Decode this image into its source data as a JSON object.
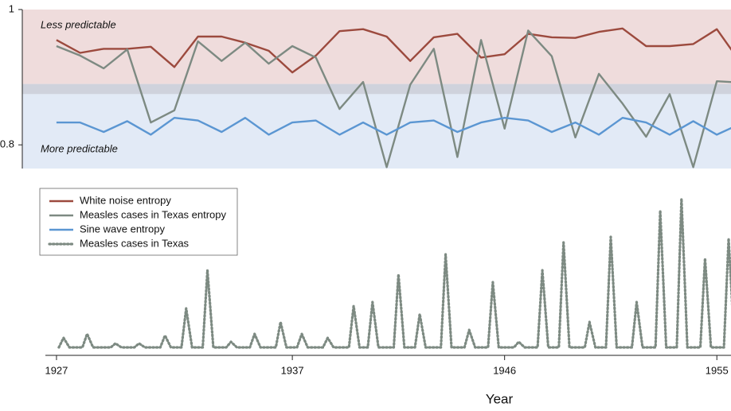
{
  "chart_data": [
    {
      "type": "line",
      "x": [
        1927,
        1928,
        1929,
        1930,
        1931,
        1932,
        1933,
        1934,
        1935,
        1936,
        1937,
        1938,
        1939,
        1940,
        1941,
        1942,
        1943,
        1944,
        1945,
        1946,
        1947,
        1948,
        1949,
        1950,
        1951,
        1952,
        1953,
        1954,
        1955,
        1956
      ],
      "series": [
        {
          "name": "White noise entropy",
          "color": "#9c4a3e",
          "values": [
            0.955,
            0.936,
            0.942,
            0.942,
            0.945,
            0.915,
            0.96,
            0.96,
            0.951,
            0.939,
            0.907,
            0.932,
            0.968,
            0.971,
            0.96,
            0.924,
            0.959,
            0.964,
            0.929,
            0.934,
            0.964,
            0.959,
            0.958,
            0.967,
            0.972,
            0.946,
            0.946,
            0.949,
            0.971,
            0.922
          ]
        },
        {
          "name": "Measles cases in Texas entropy",
          "color": "#7d8a82",
          "values": [
            0.946,
            0.932,
            0.913,
            0.941,
            0.833,
            0.851,
            0.953,
            0.924,
            0.951,
            0.92,
            0.946,
            0.929,
            0.853,
            0.893,
            0.767,
            0.889,
            0.942,
            0.782,
            0.955,
            0.824,
            0.969,
            0.931,
            0.811,
            0.905,
            0.861,
            0.812,
            0.875,
            0.767,
            0.894,
            0.892
          ]
        },
        {
          "name": "Sine wave entropy",
          "color": "#5b96d2",
          "values": [
            0.833,
            0.833,
            0.819,
            0.835,
            0.815,
            0.84,
            0.836,
            0.819,
            0.84,
            0.815,
            0.833,
            0.836,
            0.815,
            0.833,
            0.815,
            0.833,
            0.836,
            0.819,
            0.833,
            0.84,
            0.836,
            0.819,
            0.833,
            0.815,
            0.84,
            0.833,
            0.815,
            0.835,
            0.815,
            0.831
          ]
        }
      ],
      "bands": [
        {
          "range": [
            0.89,
            1
          ],
          "color": "#efdcdc"
        },
        {
          "range": [
            0.875,
            0.89
          ],
          "color": "#cfd2dc"
        },
        {
          "range": [
            0.765,
            0.875
          ],
          "color": "#e2eaf6"
        }
      ],
      "annotations": [
        "Less predictable",
        "More predictable"
      ],
      "xlim": [
        1925.55,
        1955.6
      ],
      "ylim": [
        0.765,
        1
      ],
      "yticks": [
        0.8,
        1
      ]
    },
    {
      "type": "line",
      "x": [
        1927.1,
        1927.3,
        1927.55,
        1928.1,
        1928.3,
        1928.55,
        1929.3,
        1929.5,
        1929.75,
        1930.3,
        1930.5,
        1930.75,
        1931.4,
        1931.6,
        1931.85,
        1932.3,
        1932.5,
        1932.75,
        1933.2,
        1933.4,
        1933.65,
        1934.2,
        1934.4,
        1934.65,
        1935.2,
        1935.4,
        1935.65,
        1936.3,
        1936.5,
        1936.75,
        1937.2,
        1937.4,
        1937.65,
        1938.3,
        1938.5,
        1938.75,
        1939.4,
        1939.6,
        1939.85,
        1940.2,
        1940.4,
        1940.65,
        1941.3,
        1941.5,
        1941.75,
        1942.2,
        1942.4,
        1942.65,
        1943.3,
        1943.5,
        1943.75,
        1944.3,
        1944.5,
        1944.75,
        1945.3,
        1945.5,
        1945.75,
        1946.4,
        1946.6,
        1946.85,
        1947.4,
        1947.6,
        1947.85,
        1948.3,
        1948.5,
        1948.75,
        1949.4,
        1949.6,
        1949.85,
        1950.3,
        1950.5,
        1950.75,
        1951.4,
        1951.6,
        1951.85,
        1952.4,
        1952.6,
        1952.85,
        1953.3,
        1953.5,
        1953.75,
        1954.3,
        1954.5,
        1954.75,
        1955.3,
        1955.5,
        1955.75
      ],
      "series": [
        {
          "name": "Measles cases in Texas",
          "color": "#7d8a82",
          "dashed": true,
          "values": [
            3,
            15,
            3,
            3,
            20,
            3,
            3,
            8,
            3,
            3,
            8,
            3,
            3,
            18,
            3,
            3,
            52,
            3,
            3,
            100,
            3,
            3,
            10,
            3,
            3,
            20,
            3,
            3,
            35,
            3,
            3,
            20,
            3,
            3,
            15,
            3,
            3,
            55,
            3,
            3,
            60,
            3,
            3,
            95,
            3,
            3,
            45,
            3,
            3,
            120,
            3,
            3,
            25,
            3,
            3,
            85,
            3,
            3,
            10,
            3,
            3,
            100,
            3,
            3,
            135,
            3,
            3,
            35,
            3,
            3,
            142,
            3,
            3,
            60,
            3,
            3,
            175,
            3,
            3,
            190,
            3,
            3,
            115,
            3,
            3,
            140,
            3
          ]
        }
      ],
      "xlim": [
        1925.55,
        1955.6
      ],
      "ylim": [
        0,
        200
      ],
      "xticks": [
        1927,
        1937,
        1946,
        1955
      ],
      "xlabel": "Year"
    }
  ]
}
